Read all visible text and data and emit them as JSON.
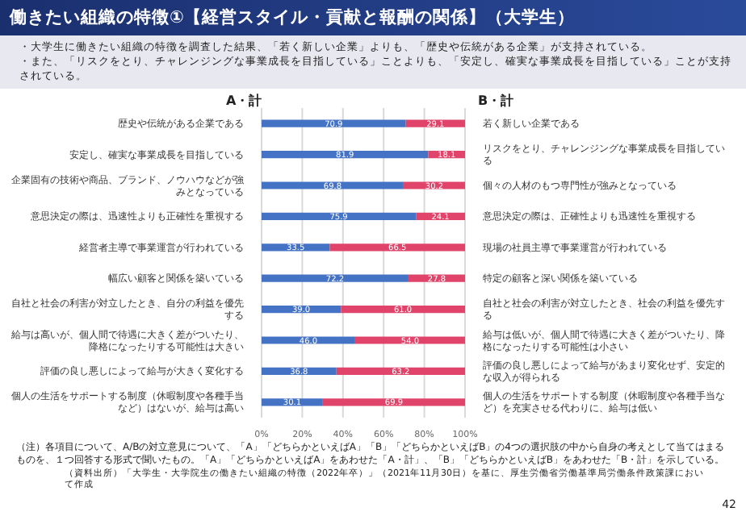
{
  "chart_data": {
    "type": "bar",
    "orientation": "horizontal",
    "stacked": true,
    "title": "働きたい組織の特徴①【経営スタイル・貢献と報酬の関係】（大学生）",
    "subtitle": "・大学生に働きたい組織の特徴を調査した結果、「若く新しい企業」よりも、「歴史や伝統がある企業」が支持されている。",
    "categories": [
      "歴史や伝統がある企業である",
      "安定し、確実な事業成長を目指している",
      "企業固有の技術や商品、ブランド、ノウハウなどが強みとなっている",
      "意思決定の際は、迅速性よりも正確性を重視する",
      "経営者主導で事業運営が行われている",
      "幅広い顧客と関係を築いている",
      "自社と社会の利害が対立したとき、自分の利益を優先する",
      "給与は高いが、個人間で待遇に大きく差がついたり、降格になったりする可能性は大きい",
      "評価の良し悪しによって給与が大きく変化する",
      "個人の生活をサポートする制度（休暇制度や各種手当など）はないが、給与は高い"
    ],
    "y2_categories": [
      "若く新しい企業である",
      "リスクをとり、チャレンジングな事業成長を目指している",
      "個々の人材のもつ専門性が強みとなっている",
      "意思決定の際は、正確性よりも迅速性を重視する",
      "現場の社員主導で事業運営が行われている",
      "特定の顧客と深い関係を築いている",
      "自社と社会の利害が対立したとき、社会の利益を優先する",
      "給与は低いが、個人間で待遇に大きく差がついたり、降格になったりする可能性は小さい",
      "評価の良し悪しによって給与があまり変化せず、安定的な収入が得られる",
      "個人の生活をサポートする制度（休暇制度や各種手当など）を充実させる代わりに、給与は低い"
    ],
    "series": [
      {
        "name": "A・計",
        "color": "#4472c4",
        "values": [
          70.9,
          81.9,
          69.8,
          75.9,
          33.5,
          72.2,
          39.0,
          46.0,
          36.8,
          30.1
        ],
        "value_labels": [
          "70.9",
          "81.9",
          "69.8",
          "75.9",
          "33.5",
          "72.2",
          "39.0",
          "46.0",
          "36.8",
          "30.1"
        ]
      },
      {
        "name": "B・計",
        "color": "#e0446a",
        "values": [
          29.1,
          18.1,
          30.2,
          24.1,
          66.5,
          27.8,
          61.0,
          54.0,
          63.2,
          69.9
        ],
        "value_labels": [
          "29.1",
          "18.1",
          "30.2",
          "24.1",
          "66.5",
          "27.8",
          "61.0",
          "54.0",
          "63.2",
          "69.9"
        ]
      }
    ],
    "xlim": [
      0,
      100
    ],
    "xticks": [
      {
        "value": 0,
        "label": "0%"
      },
      {
        "value": 20,
        "label": "20%"
      },
      {
        "value": 40,
        "label": "40%"
      },
      {
        "value": 60,
        "label": "60%"
      },
      {
        "value": 80,
        "label": "80%"
      },
      {
        "value": 100,
        "label": "100%"
      }
    ],
    "grid": "x",
    "annotations": [
      "・また、「リスクをとり、チャレンジングな事業成長を目指している」ことよりも、「安定し、確実な事業成長を目指している」ことが支持されている。",
      "（注）各項目について、A/Bの対立意見について、「A」「どちらかといえばA」「B」「どちらかといえばB」の4つの選択肢の中から自身の考えとして当てはまるものを、１つ回答する形式で聞いたもの。「A」「どちらかといえばA」をあわせた「A・計」、「B」「どちらかといえばB」をあわせた「B・計」を示している。",
      "（資料出所）「大学生・大学院生の働きたい組織の特徴（2022年卒）」（2021年11月30日）を基に、厚生労働省労働基準局労働条件政策課において作成",
      "42"
    ]
  }
}
